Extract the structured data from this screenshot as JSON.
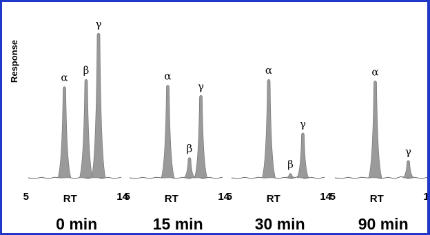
{
  "chart_data": {
    "type": "chromatogram",
    "ylabel": "Response",
    "xlabel": "RT",
    "xlim": [
      5,
      14
    ],
    "x_ticks": [
      "5",
      "14"
    ],
    "colors": {
      "peak_fill": "#9a9a9a",
      "baseline": "#555555",
      "border": "#1f38c8"
    },
    "panels": [
      {
        "label": "0 min",
        "peaks": [
          {
            "name": "α",
            "rt": 8.5,
            "height": 0.63
          },
          {
            "name": "β",
            "rt": 10.6,
            "height": 0.68
          },
          {
            "name": "γ",
            "rt": 11.8,
            "height": 1.0
          }
        ]
      },
      {
        "label": "15 min",
        "peaks": [
          {
            "name": "α",
            "rt": 8.7,
            "height": 0.64
          },
          {
            "name": "β",
            "rt": 10.8,
            "height": 0.14
          },
          {
            "name": "γ",
            "rt": 11.9,
            "height": 0.57
          }
        ]
      },
      {
        "label": "30 min",
        "peaks": [
          {
            "name": "α",
            "rt": 8.6,
            "height": 0.68
          },
          {
            "name": "β",
            "rt": 10.7,
            "height": 0.03
          },
          {
            "name": "γ",
            "rt": 11.9,
            "height": 0.31
          }
        ]
      },
      {
        "label": "90 min",
        "peaks": [
          {
            "name": "α",
            "rt": 8.9,
            "height": 0.67
          },
          {
            "name": "γ",
            "rt": 12.1,
            "height": 0.12
          }
        ]
      }
    ]
  }
}
